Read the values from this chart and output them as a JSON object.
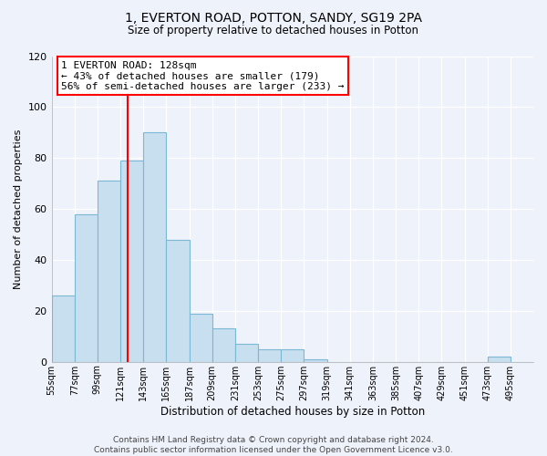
{
  "title": "1, EVERTON ROAD, POTTON, SANDY, SG19 2PA",
  "subtitle": "Size of property relative to detached houses in Potton",
  "xlabel": "Distribution of detached houses by size in Potton",
  "ylabel": "Number of detached properties",
  "bin_labels": [
    "55sqm",
    "77sqm",
    "99sqm",
    "121sqm",
    "143sqm",
    "165sqm",
    "187sqm",
    "209sqm",
    "231sqm",
    "253sqm",
    "275sqm",
    "297sqm",
    "319sqm",
    "341sqm",
    "363sqm",
    "385sqm",
    "407sqm",
    "429sqm",
    "451sqm",
    "473sqm",
    "495sqm"
  ],
  "bar_values": [
    26,
    58,
    71,
    79,
    90,
    48,
    19,
    13,
    7,
    5,
    5,
    1,
    0,
    0,
    0,
    0,
    0,
    0,
    0,
    2,
    0
  ],
  "bar_color": "#c8dff0",
  "bar_edge_color": "#7ab8d4",
  "marker_line_color": "red",
  "annotation_line1": "1 EVERTON ROAD: 128sqm",
  "annotation_line2": "← 43% of detached houses are smaller (179)",
  "annotation_line3": "56% of semi-detached houses are larger (233) →",
  "annotation_box_color": "white",
  "annotation_box_edge_color": "red",
  "ylim": [
    0,
    120
  ],
  "yticks": [
    0,
    20,
    40,
    60,
    80,
    100,
    120
  ],
  "footer_text": "Contains HM Land Registry data © Crown copyright and database right 2024.\nContains public sector information licensed under the Open Government Licence v3.0.",
  "background_color": "#eef2fa",
  "grid_color": "#ffffff",
  "title_fontsize": 10,
  "subtitle_fontsize": 8.5,
  "ylabel_fontsize": 8,
  "xlabel_fontsize": 8.5,
  "tick_fontsize": 7,
  "annotation_fontsize": 8,
  "footer_fontsize": 6.5
}
